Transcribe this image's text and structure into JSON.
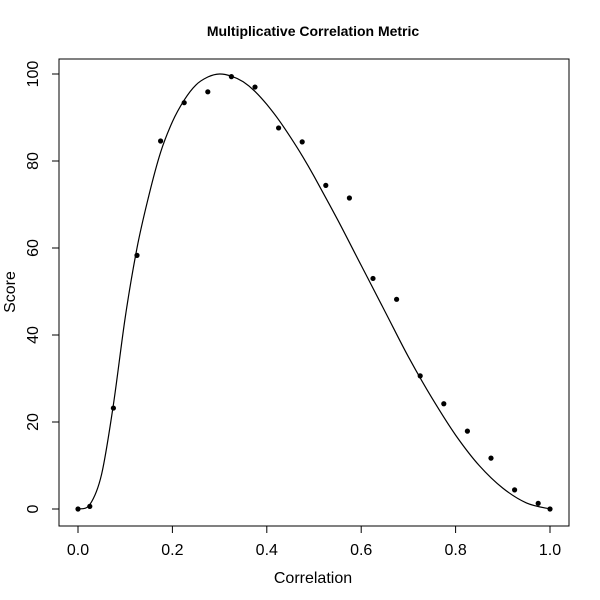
{
  "chart_data": {
    "type": "scatter",
    "title": "Multiplicative Correlation Metric",
    "xlabel": "Correlation",
    "ylabel": "Score",
    "xlim": [
      0,
      1
    ],
    "ylim": [
      0,
      100
    ],
    "x_ticks": [
      0.0,
      0.2,
      0.4,
      0.6,
      0.8,
      1.0
    ],
    "x_tick_labels": [
      "0.0",
      "0.2",
      "0.4",
      "0.6",
      "0.8",
      "1.0"
    ],
    "y_ticks": [
      0,
      20,
      40,
      60,
      80,
      100
    ],
    "y_tick_labels": [
      "0",
      "20",
      "40",
      "60",
      "80",
      "100"
    ],
    "grid": false,
    "legend": "none",
    "colors": {
      "points": "#000000",
      "curve": "#000000",
      "frame": "#000000"
    },
    "points": {
      "x": [
        0.0,
        0.025,
        0.075,
        0.125,
        0.175,
        0.225,
        0.275,
        0.325,
        0.375,
        0.425,
        0.475,
        0.525,
        0.575,
        0.625,
        0.675,
        0.725,
        0.775,
        0.825,
        0.875,
        0.925,
        0.975,
        1.0
      ],
      "y": [
        0,
        0.6,
        23.2,
        58.3,
        84.6,
        93.4,
        95.9,
        99.4,
        97.0,
        87.6,
        84.4,
        74.4,
        71.5,
        53.0,
        48.2,
        30.6,
        24.2,
        17.9,
        11.7,
        4.4,
        1.3,
        0
      ]
    },
    "curve": {
      "x": [
        0.0,
        0.025,
        0.05,
        0.075,
        0.1,
        0.125,
        0.15,
        0.175,
        0.2,
        0.225,
        0.25,
        0.275,
        0.3,
        0.325,
        0.35,
        0.375,
        0.4,
        0.425,
        0.45,
        0.475,
        0.5,
        0.55,
        0.6,
        0.65,
        0.7,
        0.75,
        0.8,
        0.85,
        0.9,
        0.95,
        1.0
      ],
      "y": [
        0,
        1.0,
        8.0,
        24.0,
        44.0,
        60.0,
        72.0,
        82.0,
        89.0,
        94.0,
        97.5,
        99.3,
        100.0,
        99.5,
        98.2,
        96.0,
        93.0,
        89.5,
        85.5,
        81.2,
        76.5,
        66.5,
        56.0,
        45.5,
        35.0,
        25.5,
        17.0,
        10.0,
        4.8,
        1.4,
        0
      ]
    }
  }
}
